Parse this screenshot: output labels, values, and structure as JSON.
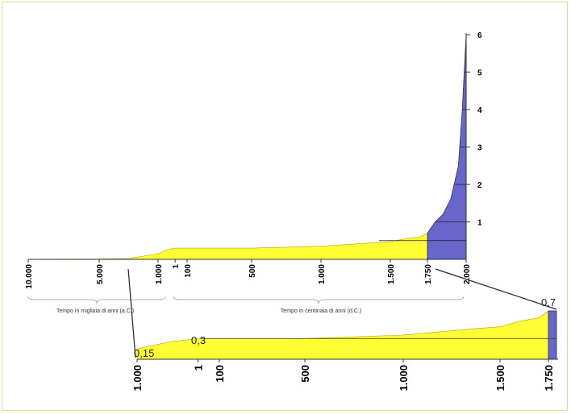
{
  "colors": {
    "pre": "#ffff33",
    "post": "#6666cc",
    "line": "#333333"
  },
  "chart_data": [
    {
      "type": "area",
      "title": "",
      "xlabel": "",
      "ylabel": "",
      "ylim": [
        0,
        6
      ],
      "y_ticks": [
        "1",
        "2",
        "3",
        "4",
        "5",
        "6"
      ],
      "x_ticks_bc": [
        "10.000",
        "5.000",
        "1.000"
      ],
      "x_ticks_ad": [
        "1",
        "100",
        "500",
        "1.000",
        "1.500",
        "1.750",
        "2.000"
      ],
      "caption_bc": "Tempo in migliaia di anni (a.C.)",
      "caption_ad": "Tempo in centinaia di anni (d.C.)",
      "series": [
        {
          "points": [
            {
              "x": -10000,
              "y": 0.005
            },
            {
              "x": -5000,
              "y": 0.01
            },
            {
              "x": -3000,
              "y": 0.02
            },
            {
              "x": -1000,
              "y": 0.15
            },
            {
              "x": -500,
              "y": 0.25
            },
            {
              "x": 0,
              "y": 0.3
            },
            {
              "x": 100,
              "y": 0.3
            },
            {
              "x": 500,
              "y": 0.3
            },
            {
              "x": 1000,
              "y": 0.35
            },
            {
              "x": 1200,
              "y": 0.4
            },
            {
              "x": 1400,
              "y": 0.45
            },
            {
              "x": 1500,
              "y": 0.47
            },
            {
              "x": 1600,
              "y": 0.55
            },
            {
              "x": 1700,
              "y": 0.6
            },
            {
              "x": 1750,
              "y": 0.7
            },
            {
              "x": 1800,
              "y": 1.0
            },
            {
              "x": 1850,
              "y": 1.2
            },
            {
              "x": 1900,
              "y": 1.6
            },
            {
              "x": 1950,
              "y": 2.5
            },
            {
              "x": 1975,
              "y": 4.0
            },
            {
              "x": 2000,
              "y": 6.0
            }
          ]
        }
      ]
    },
    {
      "type": "area",
      "title": "",
      "x_ticks": [
        "1.000",
        "1",
        "100",
        "500",
        "1.000",
        "1.500",
        "1.750"
      ],
      "annotations": [
        "0,15",
        "0,3",
        "0,7"
      ],
      "series": [
        {
          "points": [
            {
              "x": -1000,
              "y": 0.15
            },
            {
              "x": -500,
              "y": 0.25
            },
            {
              "x": 0,
              "y": 0.3
            },
            {
              "x": 100,
              "y": 0.3
            },
            {
              "x": 500,
              "y": 0.3
            },
            {
              "x": 1000,
              "y": 0.35
            },
            {
              "x": 1200,
              "y": 0.4
            },
            {
              "x": 1400,
              "y": 0.45
            },
            {
              "x": 1500,
              "y": 0.47
            },
            {
              "x": 1600,
              "y": 0.55
            },
            {
              "x": 1700,
              "y": 0.6
            },
            {
              "x": 1750,
              "y": 0.7
            }
          ]
        }
      ]
    }
  ]
}
